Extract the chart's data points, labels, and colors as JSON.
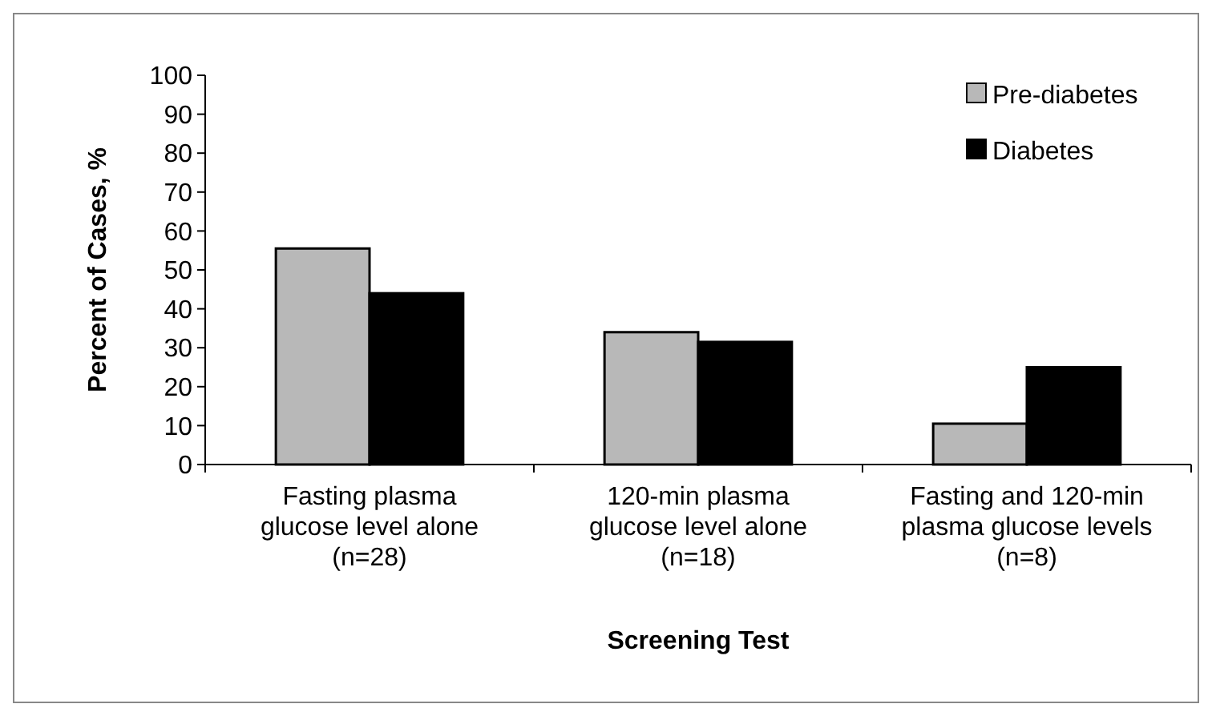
{
  "chart_data": {
    "type": "bar",
    "xlabel": "Screening Test",
    "ylabel": "Percent of Cases, %",
    "categories": [
      "Fasting plasma\nglucose level alone\n(n=28)",
      "120-min plasma\nglucose level alone\n(n=18)",
      "Fasting and 120-min\nplasma glucose levels\n(n=8)"
    ],
    "series": [
      {
        "name": "Pre-diabetes",
        "color": "#b8b8b8",
        "values": [
          55.5,
          34,
          10.5
        ]
      },
      {
        "name": "Diabetes",
        "color": "#000000",
        "values": [
          44,
          31.5,
          25
        ]
      }
    ],
    "ylim": [
      0,
      100
    ],
    "yticks": [
      0,
      10,
      20,
      30,
      40,
      50,
      60,
      70,
      80,
      90,
      100
    ],
    "grid": false,
    "legend": "top right"
  }
}
